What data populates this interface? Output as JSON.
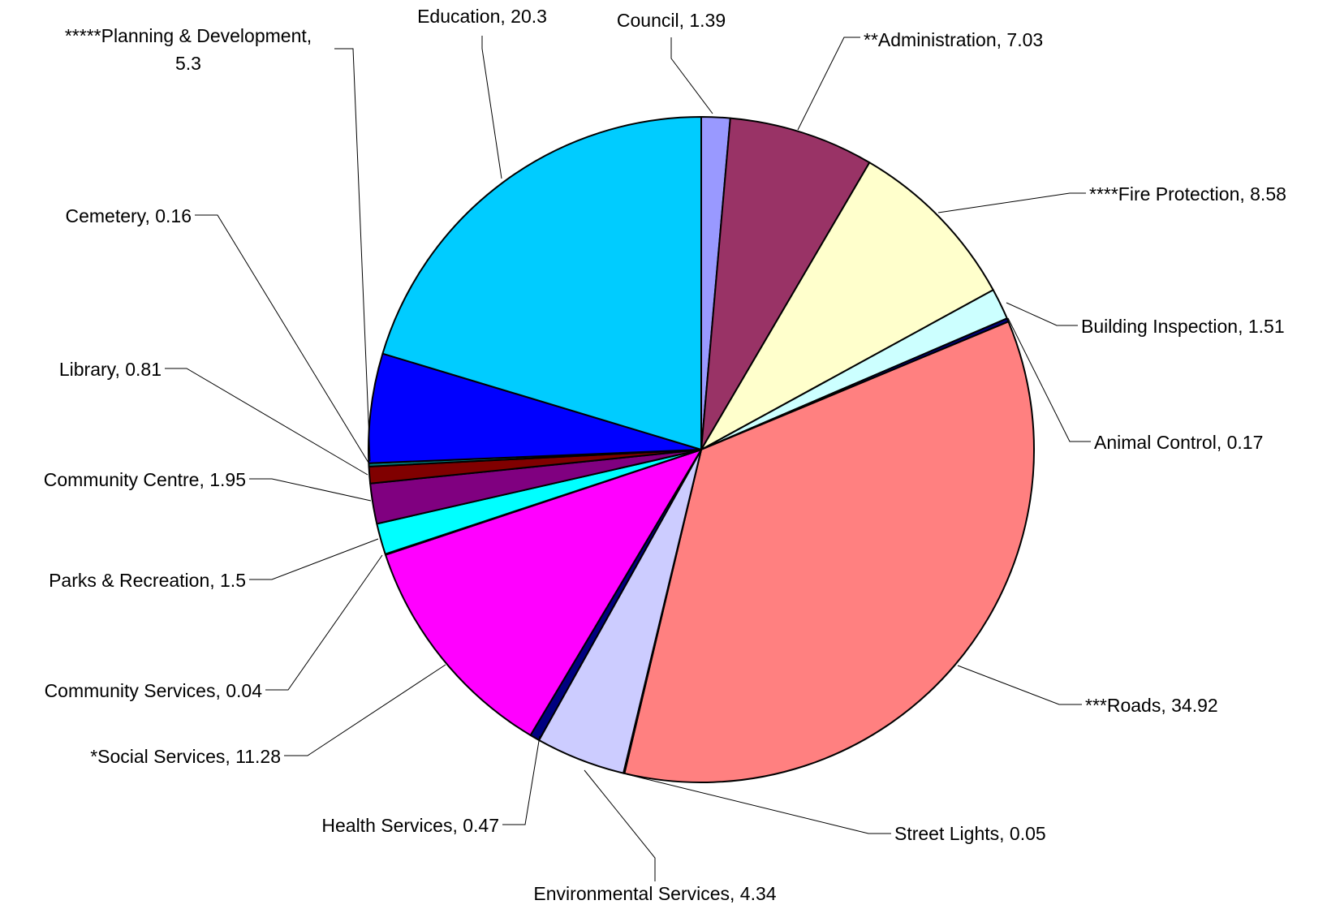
{
  "chart_data": {
    "type": "pie",
    "title": "",
    "start_angle_deg": 0,
    "direction": "clockwise",
    "slices": [
      {
        "label": "Council",
        "value": 1.39,
        "color": "#9999FF"
      },
      {
        "label": "**Administration",
        "value": 7.03,
        "color": "#993366"
      },
      {
        "label": "****Fire Protection",
        "value": 8.58,
        "color": "#FFFFCC"
      },
      {
        "label": "Building Inspection",
        "value": 1.51,
        "color": "#CCFFFF"
      },
      {
        "label": "Animal Control",
        "value": 0.17,
        "color": "#000080"
      },
      {
        "label": "***Roads",
        "value": 34.92,
        "color": "#FF8080"
      },
      {
        "label": "Street Lights",
        "value": 0.05,
        "color": "#0066CC"
      },
      {
        "label": "Environmental Services",
        "value": 4.34,
        "color": "#CCCCFF"
      },
      {
        "label": "Health Services",
        "value": 0.47,
        "color": "#000080"
      },
      {
        "label": "*Social Services",
        "value": 11.28,
        "color": "#FF00FF"
      },
      {
        "label": "Community Services",
        "value": 0.04,
        "color": "#FFFF00"
      },
      {
        "label": "Parks & Recreation",
        "value": 1.5,
        "color": "#00FFFF"
      },
      {
        "label": "Community Centre",
        "value": 1.95,
        "color": "#800080"
      },
      {
        "label": "Library",
        "value": 0.81,
        "color": "#800000"
      },
      {
        "label": "Cemetery",
        "value": 0.16,
        "color": "#008080"
      },
      {
        "label": "*****Planning & Development",
        "value": 5.3,
        "color": "#0000FF"
      },
      {
        "label": "Education",
        "value": 20.3,
        "color": "#00CCFF"
      }
    ]
  }
}
